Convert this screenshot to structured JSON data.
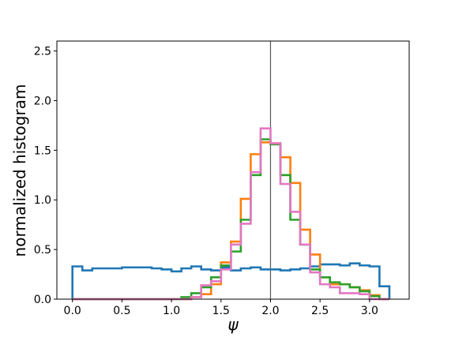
{
  "chart_data": {
    "type": "histogram-step",
    "xlabel": "ψ",
    "ylabel": "normalized histogram",
    "xlim": [
      -0.157,
      3.4
    ],
    "ylim": [
      0,
      2.6
    ],
    "x_ticks": [
      0.0,
      0.5,
      1.0,
      1.5,
      2.0,
      2.5,
      3.0
    ],
    "y_ticks": [
      0.0,
      0.5,
      1.0,
      1.5,
      2.0,
      2.5
    ],
    "x_tick_labels": [
      "0.0",
      "0.5",
      "1.0",
      "1.5",
      "2.0",
      "2.5",
      "3.0"
    ],
    "y_tick_labels": [
      "0.0",
      "0.5",
      "1.0",
      "1.5",
      "2.0",
      "2.5"
    ],
    "vertical_line_x": 2.0,
    "grid": false,
    "bin_edges": [
      0.0,
      0.1,
      0.2,
      0.3,
      0.4,
      0.5,
      0.6,
      0.7,
      0.8,
      0.9,
      1.0,
      1.1,
      1.2,
      1.3,
      1.4,
      1.5,
      1.6,
      1.7,
      1.8,
      1.9,
      2.0,
      2.1,
      2.2,
      2.3,
      2.4,
      2.5,
      2.6,
      2.7,
      2.8,
      2.9,
      3.0,
      3.1,
      3.2
    ],
    "series": [
      {
        "color": "#1f77b4",
        "values": [
          0.33,
          0.29,
          0.31,
          0.31,
          0.31,
          0.32,
          0.32,
          0.32,
          0.31,
          0.3,
          0.28,
          0.31,
          0.33,
          0.3,
          0.29,
          0.32,
          0.29,
          0.31,
          0.32,
          0.3,
          0.3,
          0.29,
          0.3,
          0.31,
          0.33,
          0.35,
          0.35,
          0.34,
          0.36,
          0.34,
          0.33,
          0.13
        ]
      },
      {
        "color": "#ff7f0e",
        "values": [
          0,
          0,
          0,
          0,
          0,
          0,
          0,
          0,
          0,
          0,
          0,
          0,
          0.02,
          0.05,
          0.15,
          0.37,
          0.58,
          1.01,
          1.46,
          1.58,
          1.57,
          1.43,
          1.17,
          0.7,
          0.45,
          0.22,
          0.15,
          0.15,
          0.12,
          0.09,
          0.04,
          0
        ]
      },
      {
        "color": "#2ca02c",
        "values": [
          0,
          0,
          0,
          0,
          0,
          0,
          0,
          0,
          0,
          0,
          0,
          0.02,
          0.06,
          0.12,
          0.22,
          0.34,
          0.48,
          0.8,
          1.25,
          1.61,
          1.56,
          1.25,
          0.8,
          0.55,
          0.3,
          0.22,
          0.17,
          0.15,
          0.12,
          0.08,
          0.03,
          0
        ]
      },
      {
        "color": "#e377c2",
        "values": [
          0,
          0,
          0,
          0,
          0,
          0,
          0,
          0,
          0,
          0,
          0,
          0,
          0.02,
          0.14,
          0.18,
          0.3,
          0.55,
          0.76,
          1.28,
          1.72,
          1.57,
          1.16,
          0.88,
          0.55,
          0.27,
          0.15,
          0.12,
          0.06,
          0.06,
          0.05,
          0,
          0
        ]
      }
    ]
  }
}
